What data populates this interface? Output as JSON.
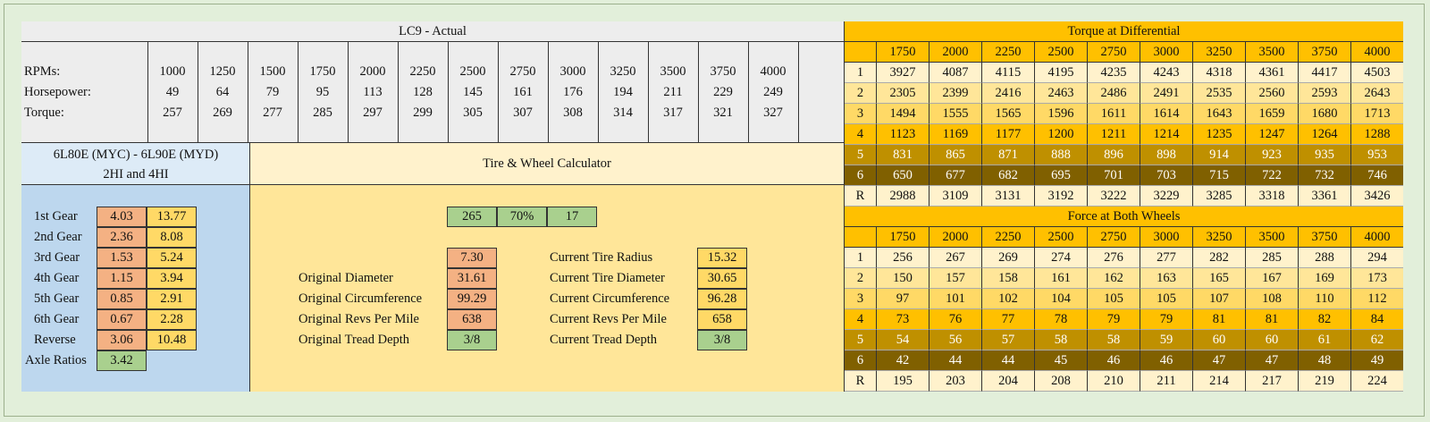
{
  "engine": {
    "title": "LC9 - Actual",
    "row_labels": [
      "RPMs:",
      "Horsepower:",
      "Torque:"
    ],
    "rpm": [
      1000,
      1250,
      1500,
      1750,
      2000,
      2250,
      2500,
      2750,
      3000,
      3250,
      3500,
      3750,
      4000
    ],
    "horsepower": [
      49,
      64,
      79,
      95,
      113,
      128,
      145,
      161,
      176,
      194,
      211,
      229,
      249
    ],
    "torque": [
      257,
      269,
      277,
      285,
      297,
      299,
      305,
      307,
      308,
      314,
      317,
      321,
      327
    ]
  },
  "transmission": {
    "title_lines": [
      "6L80E (MYC) - 6L90E (MYD)",
      "2HI and 4HI"
    ],
    "gears": [
      {
        "label": "1st Gear",
        "ratio": "4.03",
        "value": "13.77"
      },
      {
        "label": "2nd Gear",
        "ratio": "2.36",
        "value": "8.08"
      },
      {
        "label": "3rd Gear",
        "ratio": "1.53",
        "value": "5.24"
      },
      {
        "label": "4th Gear",
        "ratio": "1.15",
        "value": "3.94"
      },
      {
        "label": "5th Gear",
        "ratio": "0.85",
        "value": "2.91"
      },
      {
        "label": "6th Gear",
        "ratio": "0.67",
        "value": "2.28"
      },
      {
        "label": "Reverse",
        "ratio": "3.06",
        "value": "10.48"
      }
    ],
    "axle": {
      "label": "Axle Ratios",
      "value": "3.42"
    }
  },
  "tire": {
    "title": "Tire & Wheel Calculator",
    "inputs": [
      "265",
      "70%",
      "17"
    ],
    "original": {
      "unlabeled_value": "7.30",
      "rows": [
        {
          "label": "Original Diameter",
          "value": "31.61"
        },
        {
          "label": "Original Circumference",
          "value": "99.29"
        },
        {
          "label": "Original Revs Per Mile",
          "value": "638"
        },
        {
          "label": "Original Tread Depth",
          "value": "3/8"
        }
      ]
    },
    "current": {
      "rows": [
        {
          "label": "Current Tire Radius",
          "value": "15.32"
        },
        {
          "label": "Current Tire Diameter",
          "value": "30.65"
        },
        {
          "label": "Current Circumference",
          "value": "96.28"
        },
        {
          "label": "Current Revs Per Mile",
          "value": "658"
        },
        {
          "label": "Current Tread Depth",
          "value": "3/8"
        }
      ]
    }
  },
  "torque_table": {
    "title": "Torque at Differential",
    "rpms": [
      1750,
      2000,
      2250,
      2500,
      2750,
      3000,
      3250,
      3500,
      3750,
      4000
    ],
    "rows": [
      {
        "gear": "1",
        "values": [
          3927,
          4087,
          4115,
          4195,
          4235,
          4243,
          4318,
          4361,
          4417,
          4503
        ]
      },
      {
        "gear": "2",
        "values": [
          2305,
          2399,
          2416,
          2463,
          2486,
          2491,
          2535,
          2560,
          2593,
          2643
        ]
      },
      {
        "gear": "3",
        "values": [
          1494,
          1555,
          1565,
          1596,
          1611,
          1614,
          1643,
          1659,
          1680,
          1713
        ]
      },
      {
        "gear": "4",
        "values": [
          1123,
          1169,
          1177,
          1200,
          1211,
          1214,
          1235,
          1247,
          1264,
          1288
        ]
      },
      {
        "gear": "5",
        "values": [
          831,
          865,
          871,
          888,
          896,
          898,
          914,
          923,
          935,
          953
        ]
      },
      {
        "gear": "6",
        "values": [
          650,
          677,
          682,
          695,
          701,
          703,
          715,
          722,
          732,
          746
        ]
      },
      {
        "gear": "R",
        "values": [
          2988,
          3109,
          3131,
          3192,
          3222,
          3229,
          3285,
          3318,
          3361,
          3426
        ]
      }
    ]
  },
  "force_table": {
    "title": "Force at Both Wheels",
    "rpms": [
      1750,
      2000,
      2250,
      2500,
      2750,
      3000,
      3250,
      3500,
      3750,
      4000
    ],
    "rows": [
      {
        "gear": "1",
        "values": [
          256,
          267,
          269,
          274,
          276,
          277,
          282,
          285,
          288,
          294
        ]
      },
      {
        "gear": "2",
        "values": [
          150,
          157,
          158,
          161,
          162,
          163,
          165,
          167,
          169,
          173
        ]
      },
      {
        "gear": "3",
        "values": [
          97,
          101,
          102,
          104,
          105,
          105,
          107,
          108,
          110,
          112
        ]
      },
      {
        "gear": "4",
        "values": [
          73,
          76,
          77,
          78,
          79,
          79,
          81,
          81,
          82,
          84
        ]
      },
      {
        "gear": "5",
        "values": [
          54,
          56,
          57,
          58,
          58,
          59,
          60,
          60,
          61,
          62
        ]
      },
      {
        "gear": "6",
        "values": [
          42,
          44,
          44,
          45,
          46,
          46,
          47,
          47,
          48,
          49
        ]
      },
      {
        "gear": "R",
        "values": [
          195,
          203,
          204,
          208,
          210,
          211,
          214,
          217,
          219,
          224
        ]
      }
    ]
  }
}
